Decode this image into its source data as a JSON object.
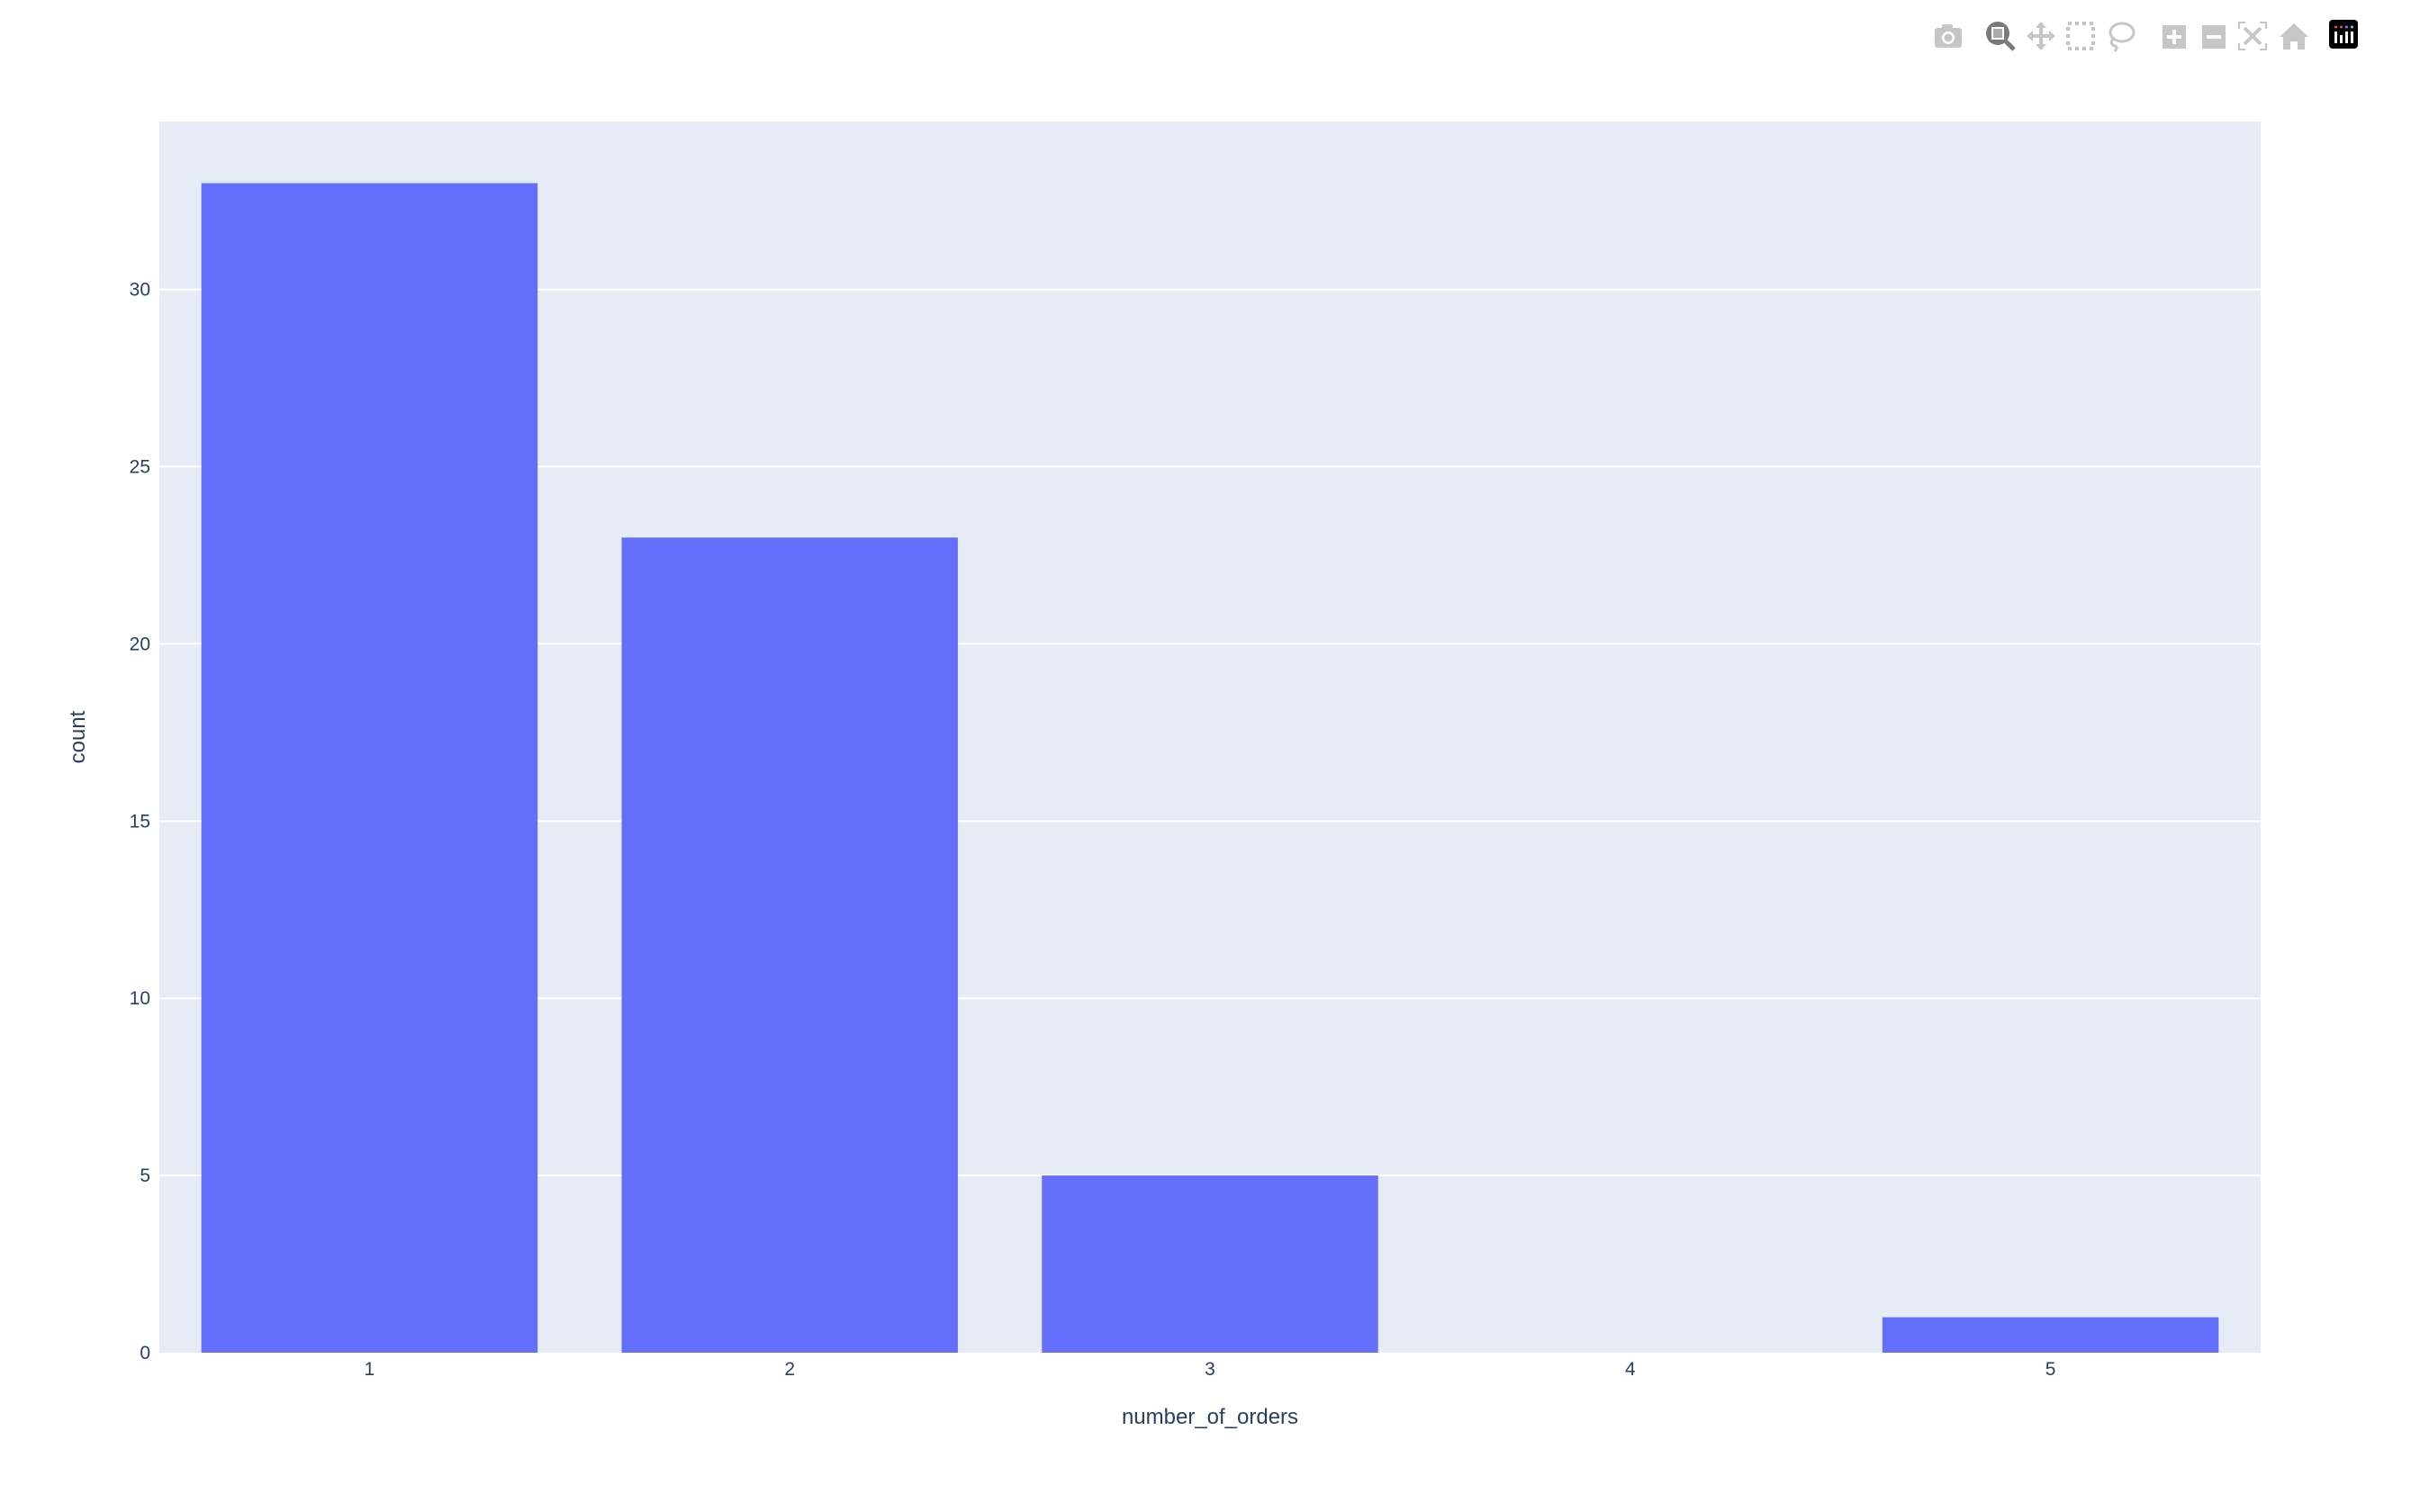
{
  "chart_data": {
    "type": "bar",
    "categories": [
      "1",
      "2",
      "3",
      "4",
      "5"
    ],
    "values": [
      33,
      23,
      5,
      0,
      1
    ],
    "title": "",
    "xlabel": "number_of_orders",
    "ylabel": "count",
    "ylim": [
      0,
      34.74
    ],
    "yticks": [
      0,
      5,
      10,
      15,
      20,
      25,
      30
    ],
    "grid": true,
    "bar_color": "#636efa",
    "plot_bg": "#e5ecf6",
    "text_color": "#2a3f5f"
  },
  "modebar": {
    "buttons": [
      "camera-icon",
      "zoom-icon",
      "pan-icon",
      "box-select-icon",
      "lasso-select-icon",
      "zoom-in-icon",
      "zoom-out-icon",
      "autoscale-icon",
      "reset-axes-icon",
      "plotly-logo-icon"
    ],
    "active": "zoom-icon",
    "icon_color": "#c6c6c6",
    "active_color": "#7a7a7a"
  }
}
